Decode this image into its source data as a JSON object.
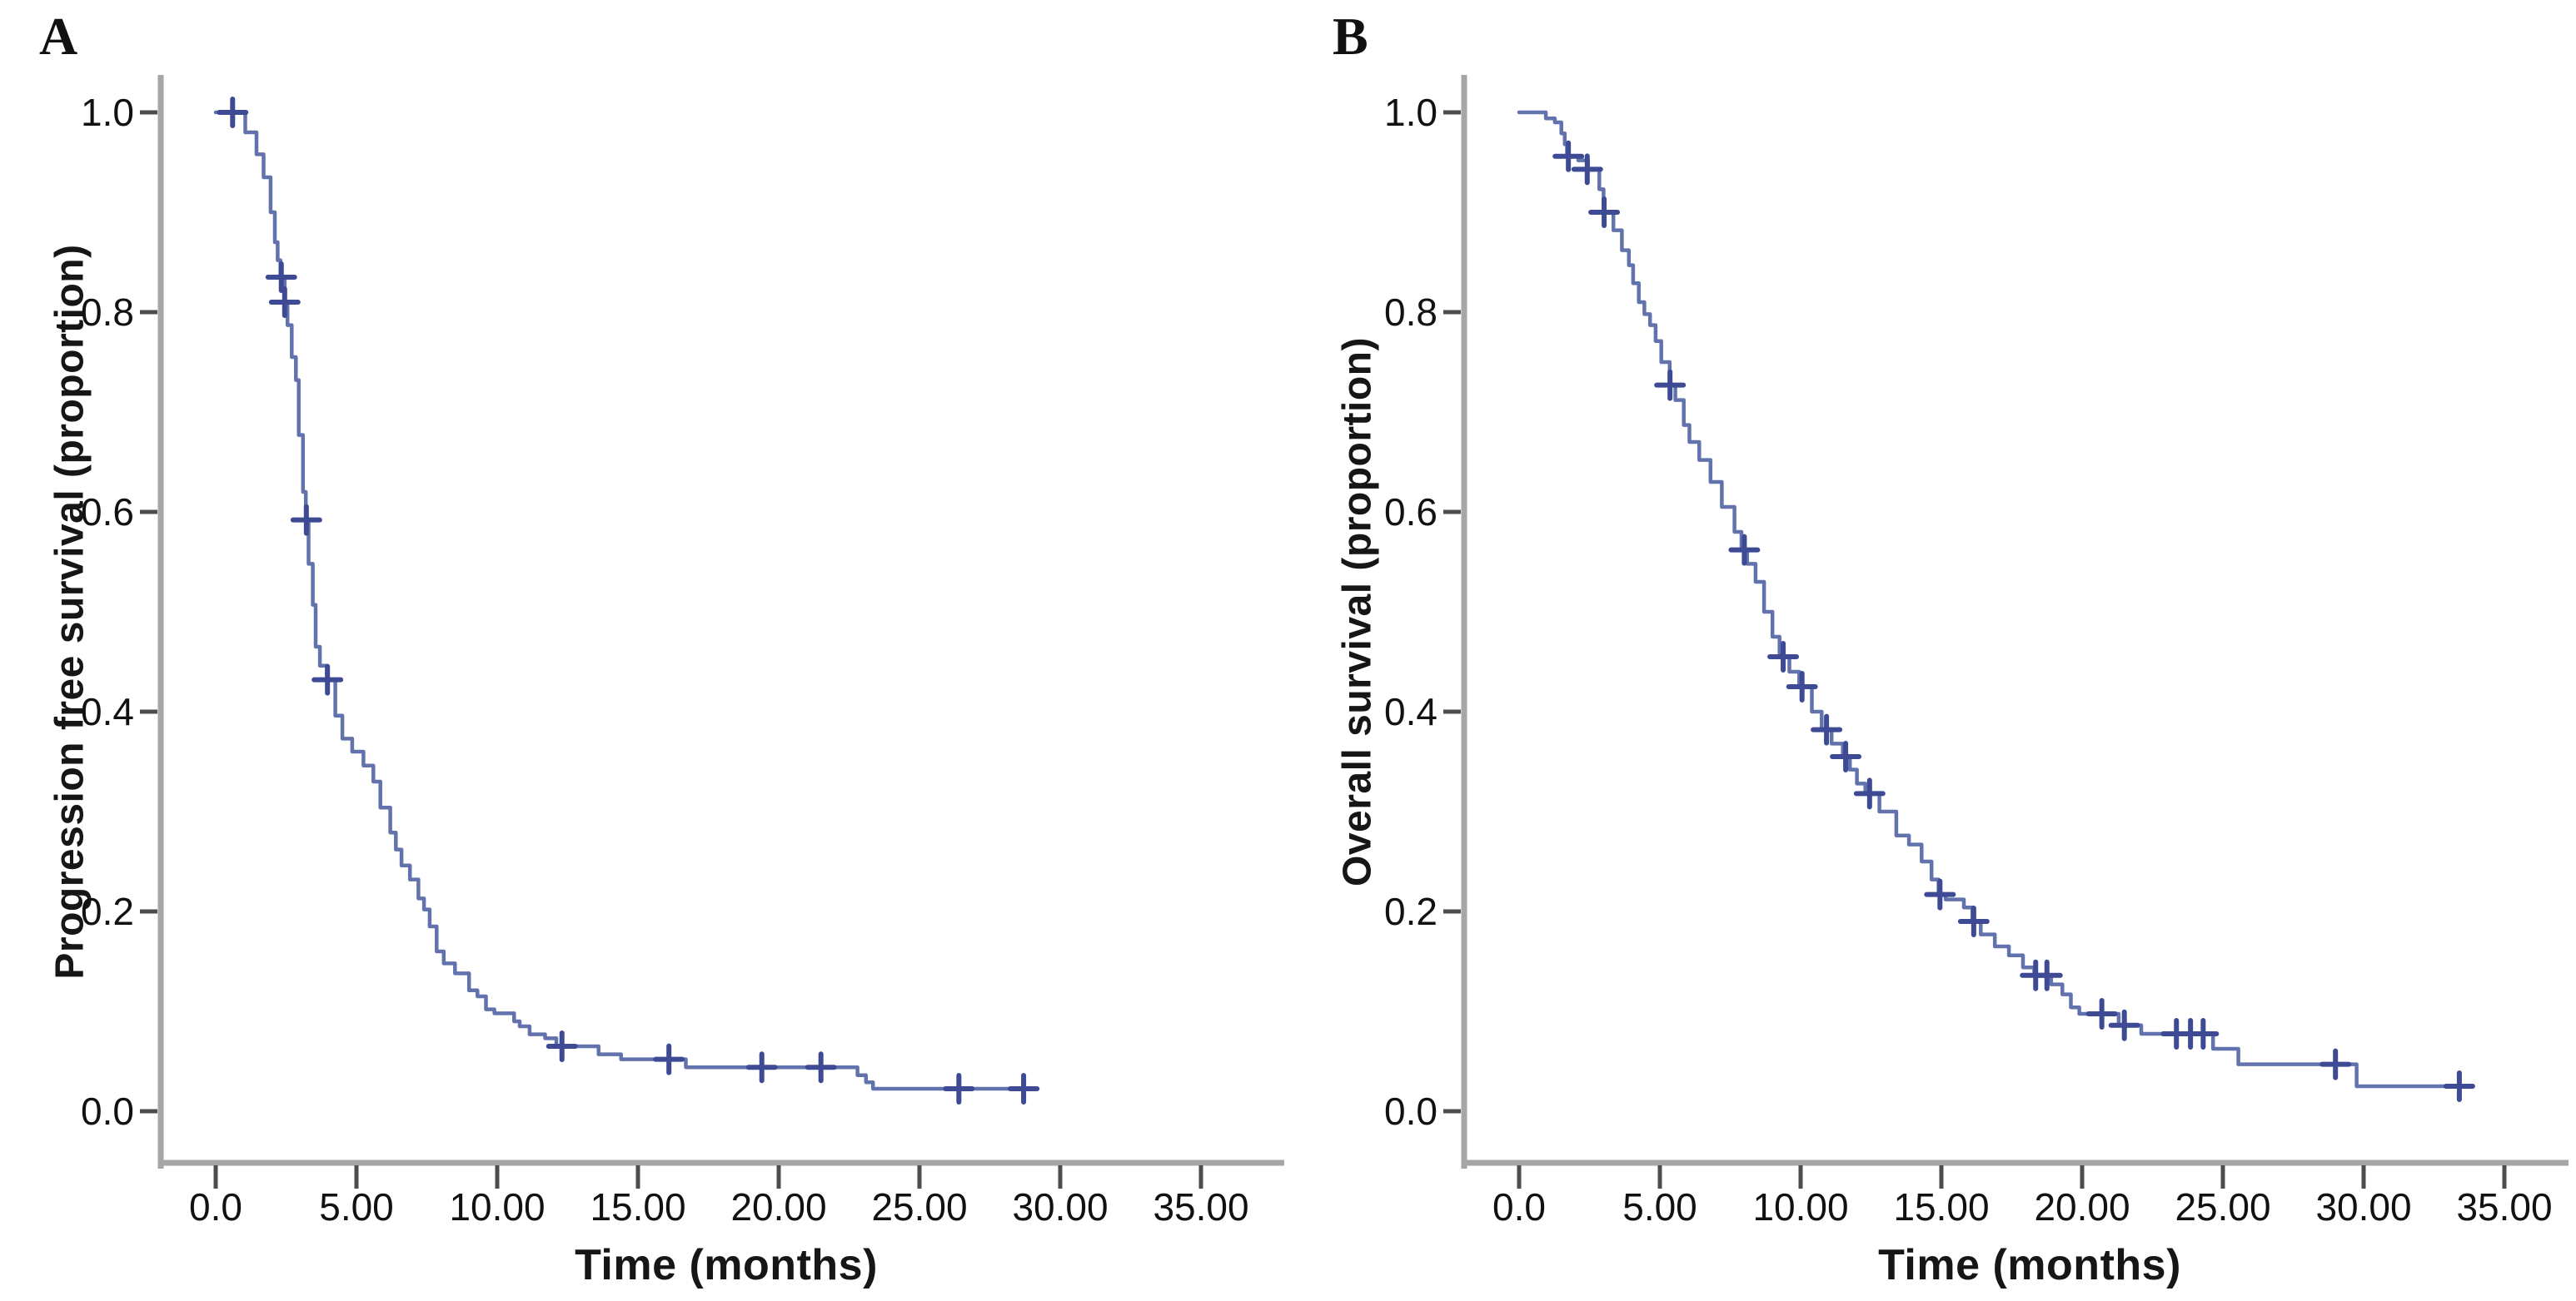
{
  "figure": {
    "background": "#ffffff",
    "panels": [
      {
        "letter": "A",
        "y_axis_title": "Progression free survival (proportion)",
        "x_axis_title": "Time (months)"
      },
      {
        "letter": "B",
        "y_axis_title": "Overall survival (proportion)",
        "x_axis_title": "Time (months)"
      }
    ]
  },
  "colors": {
    "curve": "#6272ac",
    "censor_mark": "#3e4b94",
    "axis_line": "#a6a6a6",
    "tick_mark": "#4d4d4d",
    "text": "#111111",
    "background": "#ffffff"
  },
  "chart_data": [
    {
      "type": "line",
      "subtype": "kaplan_meier_step_curve",
      "panel": "A",
      "title": "Progression free survival",
      "xlabel": "Time (months)",
      "ylabel": "Progression free survival (proportion)",
      "xlim": [
        0,
        35
      ],
      "ylim": [
        0.0,
        1.0
      ],
      "grid": false,
      "legend": false,
      "x_ticks": [
        0,
        5,
        10,
        15,
        20,
        25,
        30,
        35
      ],
      "x_tick_labels": [
        "0.0",
        "5.00",
        "10.00",
        "15.00",
        "20.00",
        "25.00",
        "30.00",
        "35.00"
      ],
      "y_ticks": [
        1.0,
        0.8,
        0.6,
        0.4,
        0.2,
        0.0
      ],
      "y_tick_labels": [
        "1.0",
        "0.8",
        "0.6",
        "0.4",
        "0.2",
        "0.0"
      ],
      "series": [
        {
          "name": "Progression free survival",
          "color": "#6272ac",
          "steps": [
            [
              0,
              1.0
            ],
            [
              1.05,
              0.98
            ],
            [
              1.45,
              0.958
            ],
            [
              1.7,
              0.935
            ],
            [
              1.95,
              0.9
            ],
            [
              2.1,
              0.87
            ],
            [
              2.2,
              0.852
            ],
            [
              2.3,
              0.835
            ],
            [
              2.45,
              0.81
            ],
            [
              2.55,
              0.787
            ],
            [
              2.7,
              0.755
            ],
            [
              2.85,
              0.732
            ],
            [
              2.95,
              0.677
            ],
            [
              3.1,
              0.62
            ],
            [
              3.2,
              0.592
            ],
            [
              3.3,
              0.548
            ],
            [
              3.45,
              0.507
            ],
            [
              3.55,
              0.465
            ],
            [
              3.7,
              0.446
            ],
            [
              3.95,
              0.432
            ],
            [
              4.25,
              0.396
            ],
            [
              4.5,
              0.373
            ],
            [
              4.85,
              0.36
            ],
            [
              5.25,
              0.346
            ],
            [
              5.6,
              0.33
            ],
            [
              5.85,
              0.304
            ],
            [
              6.2,
              0.279
            ],
            [
              6.4,
              0.262
            ],
            [
              6.6,
              0.246
            ],
            [
              6.9,
              0.232
            ],
            [
              7.2,
              0.213
            ],
            [
              7.4,
              0.202
            ],
            [
              7.6,
              0.185
            ],
            [
              7.85,
              0.16
            ],
            [
              8.1,
              0.148
            ],
            [
              8.5,
              0.138
            ],
            [
              9.0,
              0.121
            ],
            [
              9.3,
              0.115
            ],
            [
              9.6,
              0.102
            ],
            [
              9.9,
              0.098
            ],
            [
              10.6,
              0.09
            ],
            [
              10.8,
              0.085
            ],
            [
              11.15,
              0.077
            ],
            [
              11.7,
              0.073
            ],
            [
              12.1,
              0.065
            ],
            [
              13.6,
              0.057
            ],
            [
              14.4,
              0.052
            ],
            [
              16.7,
              0.044
            ],
            [
              22.8,
              0.036
            ],
            [
              23.1,
              0.029
            ],
            [
              23.35,
              0.0225
            ],
            [
              29.2,
              0.0225
            ]
          ],
          "censors": [
            [
              0.6,
              1.0
            ],
            [
              2.33,
              0.835
            ],
            [
              2.45,
              0.81
            ],
            [
              3.22,
              0.592
            ],
            [
              3.97,
              0.432
            ],
            [
              12.3,
              0.065
            ],
            [
              16.1,
              0.052
            ],
            [
              19.4,
              0.044
            ],
            [
              21.5,
              0.044
            ],
            [
              26.4,
              0.0225
            ],
            [
              28.7,
              0.0225
            ]
          ]
        }
      ]
    },
    {
      "type": "line",
      "subtype": "kaplan_meier_step_curve",
      "panel": "B",
      "title": "Overall survival",
      "xlabel": "Time (months)",
      "ylabel": "Overall survival (proportion)",
      "xlim": [
        0,
        35
      ],
      "ylim": [
        0.0,
        1.0
      ],
      "grid": false,
      "legend": false,
      "x_ticks": [
        0,
        5,
        10,
        15,
        20,
        25,
        30,
        35
      ],
      "x_tick_labels": [
        "0.0",
        "5.00",
        "10.00",
        "15.00",
        "20.00",
        "25.00",
        "30.00",
        "35.00"
      ],
      "y_ticks": [
        1.0,
        0.8,
        0.6,
        0.4,
        0.2,
        0.0
      ],
      "y_tick_labels": [
        "1.0",
        "0.8",
        "0.6",
        "0.4",
        "0.2",
        "0.0"
      ],
      "series": [
        {
          "name": "Overall survival",
          "color": "#6272ac",
          "steps": [
            [
              0,
              1.0
            ],
            [
              0.95,
              0.994
            ],
            [
              1.27,
              0.99
            ],
            [
              1.5,
              0.979
            ],
            [
              1.62,
              0.968
            ],
            [
              1.7,
              0.956
            ],
            [
              2.1,
              0.952
            ],
            [
              2.45,
              0.943
            ],
            [
              2.85,
              0.923
            ],
            [
              3.0,
              0.9
            ],
            [
              3.35,
              0.882
            ],
            [
              3.65,
              0.862
            ],
            [
              3.9,
              0.847
            ],
            [
              4.05,
              0.829
            ],
            [
              4.25,
              0.81
            ],
            [
              4.45,
              0.798
            ],
            [
              4.65,
              0.787
            ],
            [
              4.85,
              0.771
            ],
            [
              5.05,
              0.75
            ],
            [
              5.35,
              0.727
            ],
            [
              5.55,
              0.712
            ],
            [
              5.85,
              0.687
            ],
            [
              6.05,
              0.67
            ],
            [
              6.4,
              0.652
            ],
            [
              6.8,
              0.63
            ],
            [
              7.2,
              0.605
            ],
            [
              7.65,
              0.58
            ],
            [
              7.9,
              0.562
            ],
            [
              8.1,
              0.548
            ],
            [
              8.4,
              0.53
            ],
            [
              8.7,
              0.5
            ],
            [
              9.0,
              0.475
            ],
            [
              9.25,
              0.455
            ],
            [
              9.6,
              0.44
            ],
            [
              9.95,
              0.425
            ],
            [
              10.4,
              0.4
            ],
            [
              10.75,
              0.382
            ],
            [
              11.1,
              0.368
            ],
            [
              11.5,
              0.355
            ],
            [
              11.75,
              0.342
            ],
            [
              12.0,
              0.328
            ],
            [
              12.3,
              0.318
            ],
            [
              12.8,
              0.3
            ],
            [
              13.4,
              0.276
            ],
            [
              13.85,
              0.267
            ],
            [
              14.3,
              0.25
            ],
            [
              14.65,
              0.232
            ],
            [
              14.9,
              0.217
            ],
            [
              15.15,
              0.212
            ],
            [
              15.8,
              0.204
            ],
            [
              16.1,
              0.19
            ],
            [
              16.4,
              0.177
            ],
            [
              16.9,
              0.165
            ],
            [
              17.4,
              0.156
            ],
            [
              17.9,
              0.144
            ],
            [
              18.3,
              0.136
            ],
            [
              18.9,
              0.127
            ],
            [
              19.3,
              0.117
            ],
            [
              19.6,
              0.104
            ],
            [
              19.9,
              0.0975
            ],
            [
              21.3,
              0.086
            ],
            [
              22.1,
              0.0775
            ],
            [
              24.65,
              0.0625
            ],
            [
              25.55,
              0.047
            ],
            [
              29.75,
              0.025
            ],
            [
              33.4,
              0.025
            ]
          ],
          "censors": [
            [
              1.75,
              0.956
            ],
            [
              2.42,
              0.943
            ],
            [
              3.02,
              0.9
            ],
            [
              5.36,
              0.727
            ],
            [
              8.0,
              0.562
            ],
            [
              9.38,
              0.455
            ],
            [
              10.05,
              0.425
            ],
            [
              10.92,
              0.382
            ],
            [
              11.6,
              0.355
            ],
            [
              12.45,
              0.318
            ],
            [
              14.95,
              0.217
            ],
            [
              16.15,
              0.19
            ],
            [
              18.35,
              0.136
            ],
            [
              18.75,
              0.136
            ],
            [
              20.7,
              0.0975
            ],
            [
              21.5,
              0.086
            ],
            [
              23.35,
              0.0775
            ],
            [
              23.85,
              0.0775
            ],
            [
              24.3,
              0.0775
            ],
            [
              29.0,
              0.047
            ],
            [
              33.4,
              0.025
            ]
          ]
        }
      ]
    }
  ]
}
